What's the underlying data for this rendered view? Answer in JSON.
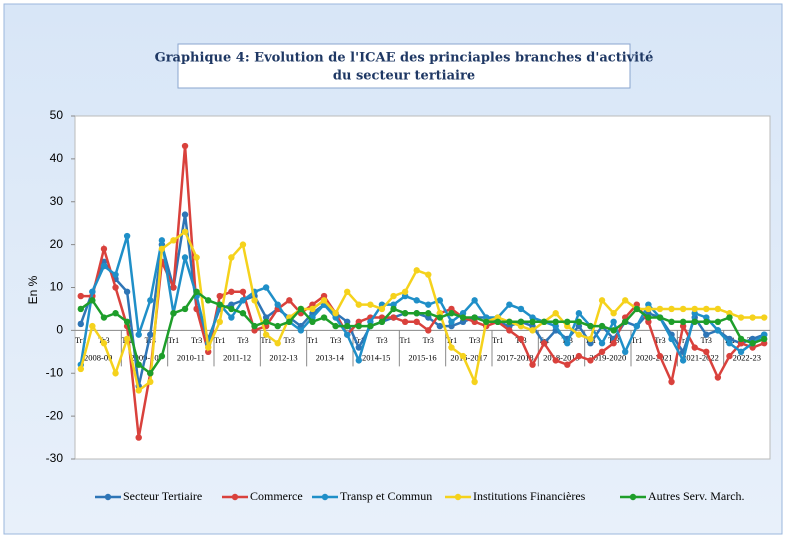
{
  "chart_data": {
    "type": "line",
    "title": [
      "Graphique 4: Evolution de l'ICAE des princiaples branches d'activité",
      "du secteur tertiaire"
    ],
    "ylabel": "En %",
    "ylim": [
      -30,
      50
    ],
    "yticks": [
      -30,
      -20,
      -10,
      0,
      10,
      20,
      30,
      40,
      50
    ],
    "categories": [
      "Tr1",
      null,
      "Tr3",
      null,
      "Tr1",
      null,
      "Tr3",
      null,
      "Tr1",
      null,
      "Tr3",
      null,
      "Tr1",
      null,
      "Tr3",
      null,
      "Tr1",
      null,
      "Tr3",
      null,
      "Tr1",
      null,
      "Tr3",
      null,
      "Tr1",
      null,
      "Tr3",
      null,
      "Tr1",
      null,
      "Tr3",
      null,
      "Tr1",
      null,
      "Tr3",
      null,
      "Tr1",
      null,
      "Tr3",
      null,
      "Tr1",
      null,
      "Tr3",
      null,
      "Tr1",
      null,
      "Tr3",
      null,
      "Tr1",
      null,
      "Tr3",
      null,
      "Tr1",
      null,
      "Tr3",
      null,
      "Tr1",
      null,
      "Tr3",
      null
    ],
    "groups": [
      "2008-09",
      "2009-10",
      "2010-11",
      "2011-12",
      "2012-13",
      "2013-14",
      "2014-15",
      "2015-16",
      "2016-2017",
      "2017-2018",
      "2018-2019",
      "2019-2020",
      "2020-2021",
      "2021-2022",
      "2022-23"
    ],
    "series": [
      {
        "name": "Secteur Tertiaire",
        "color": "#2e75b6",
        "values": [
          1.5,
          9,
          16,
          12,
          9,
          -13,
          -1,
          20,
          10,
          27,
          5,
          -2,
          5,
          6,
          7,
          8,
          3,
          5,
          3,
          1,
          4,
          6,
          4,
          2,
          -4,
          1,
          2,
          3,
          4,
          4,
          3,
          1,
          1,
          2,
          3,
          3,
          2,
          1,
          2,
          1,
          -3,
          0,
          -2,
          1,
          -3,
          1,
          -2,
          2,
          1,
          4,
          3,
          -1,
          -5,
          3,
          -1,
          0,
          -2,
          -3,
          -2,
          -1
        ]
      },
      {
        "name": "Commerce",
        "color": "#d9413c",
        "values": [
          8,
          8,
          19,
          10,
          1,
          -25,
          -10,
          16,
          10,
          43,
          5,
          -5,
          8,
          9,
          9,
          0,
          1,
          5,
          7,
          4,
          6,
          8,
          4,
          -1,
          2,
          3,
          3,
          3,
          2,
          2,
          0,
          4,
          5,
          3,
          2,
          1,
          2,
          0,
          -2,
          -8,
          -3,
          -7,
          -8,
          -6,
          -7,
          -5,
          -3,
          3,
          6,
          2,
          -6,
          -12,
          1,
          -4,
          -5,
          -11,
          -6,
          -3,
          -4,
          -3
        ]
      },
      {
        "name": "Transp et  Commun",
        "color": "#1f8fc8",
        "values": [
          -8,
          9,
          15,
          13,
          22,
          -1,
          7,
          21,
          4,
          17,
          8,
          -3,
          6,
          3,
          7,
          9,
          10,
          6,
          2,
          0,
          3,
          6,
          3,
          -1,
          -7,
          2,
          6,
          6,
          8,
          7,
          6,
          7,
          2,
          4,
          7,
          3,
          3,
          6,
          5,
          3,
          2,
          1,
          -3,
          4,
          1,
          -3,
          2,
          -5,
          1,
          6,
          3,
          -2,
          -7,
          4,
          3,
          0,
          -3,
          -5,
          -3,
          -1
        ]
      },
      {
        "name": "Institutions Financières",
        "color": "#f5d21c",
        "values": [
          -9,
          1,
          -3,
          -10,
          -2,
          -14,
          -12,
          19,
          21,
          23,
          17,
          -4,
          2,
          17,
          20,
          7,
          -1,
          -3,
          3,
          5,
          5,
          7,
          4,
          9,
          6,
          6,
          5,
          8,
          9,
          14,
          13,
          4,
          -4,
          -6,
          -12,
          2,
          3,
          2,
          1,
          0,
          2,
          4,
          1,
          -1,
          -2,
          7,
          4,
          7,
          5,
          5,
          5,
          5,
          5,
          5,
          5,
          5,
          4,
          3,
          3,
          3
        ]
      },
      {
        "name": "Autres Serv. March.",
        "color": "#1e9e2a",
        "values": [
          5,
          7,
          3,
          4,
          2,
          -8,
          -10,
          -6,
          4,
          5,
          9,
          7,
          6,
          5,
          4,
          1,
          2,
          1,
          2,
          5,
          2,
          3,
          1,
          1,
          1,
          1,
          2,
          5,
          4,
          4,
          4,
          3,
          4,
          3,
          3,
          2,
          2,
          2,
          2,
          2,
          2,
          2,
          2,
          2,
          1,
          1,
          0,
          2,
          5,
          3,
          3,
          2,
          2,
          2,
          2,
          2,
          3,
          -2,
          -3,
          -2
        ]
      }
    ]
  }
}
